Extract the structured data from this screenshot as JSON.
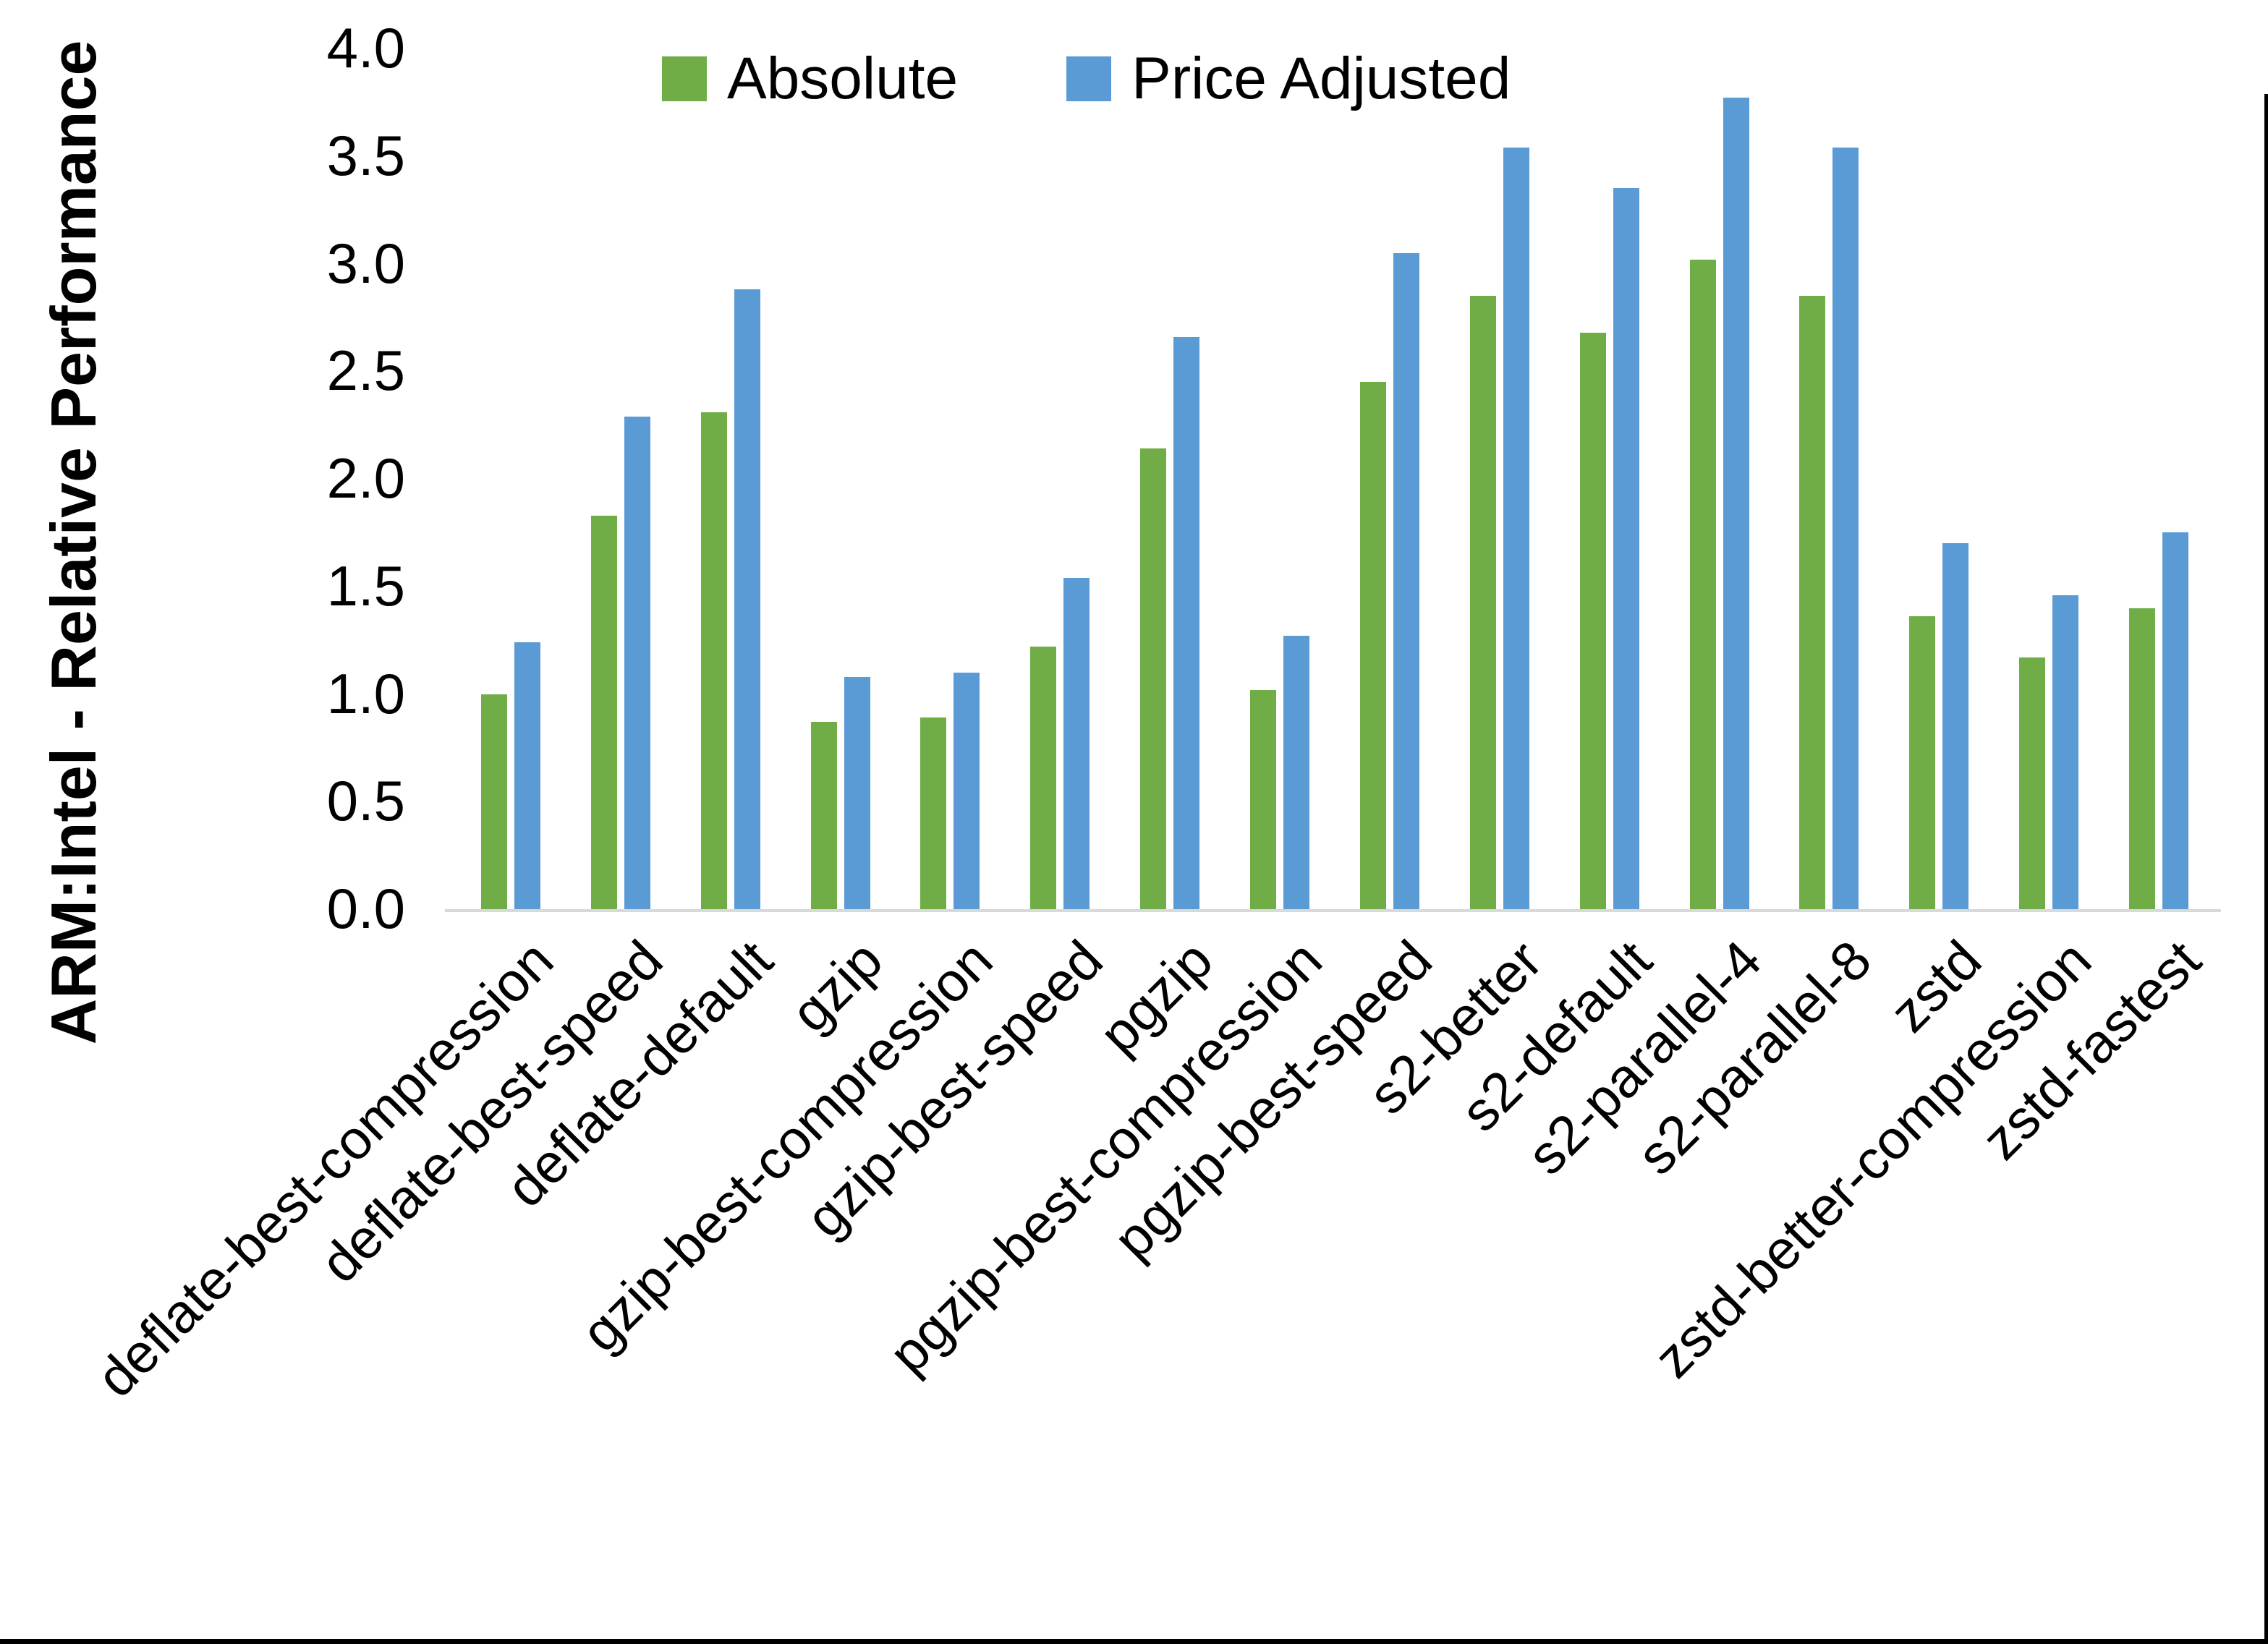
{
  "chart_data": {
    "type": "bar",
    "title": "",
    "ylabel": "ARM:Intel - Relative Performance",
    "xlabel": "",
    "ylim": [
      0.0,
      4.0
    ],
    "ytick_step": 0.5,
    "yticks": [
      "0.0",
      "0.5",
      "1.0",
      "1.5",
      "2.0",
      "2.5",
      "3.0",
      "3.5",
      "4.0"
    ],
    "grid": false,
    "legend_position": "top-center",
    "categories": [
      "deflate-best-compression",
      "deflate-best-speed",
      "deflate-default",
      "gzip",
      "gzip-best-compression",
      "gzip-best-speed",
      "pgzip",
      "pgzip-best-compression",
      "pgzip-best-speed",
      "s2-better",
      "s2-default",
      "s2-parallel-4",
      "s2-parallel-8",
      "zstd",
      "zstd-better-compression",
      "zstd-fastest"
    ],
    "series": [
      {
        "name": "Absolute",
        "color": "#70AD47",
        "values": [
          1.01,
          1.84,
          2.32,
          0.88,
          0.9,
          1.23,
          2.15,
          1.03,
          2.46,
          2.86,
          2.69,
          3.03,
          2.86,
          1.37,
          1.18,
          1.41
        ]
      },
      {
        "name": "Price Adjusted",
        "color": "#5B9BD5",
        "values": [
          1.25,
          2.3,
          2.89,
          1.09,
          1.11,
          1.55,
          2.67,
          1.28,
          3.06,
          3.55,
          3.36,
          3.78,
          3.55,
          1.71,
          1.47,
          1.76
        ]
      }
    ],
    "colors": {
      "axis_line": "#D9D9D9",
      "text": "#000000",
      "background": "#FFFFFF",
      "edge_border": "#000000"
    }
  }
}
